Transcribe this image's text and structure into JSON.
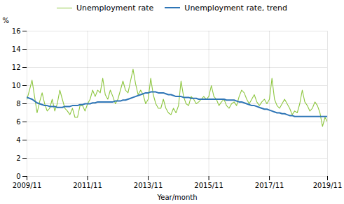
{
  "chart_data": {
    "type": "line",
    "xlabel": "Year/month",
    "ylabel": "%",
    "categories": [
      "2009/11",
      null,
      null,
      null,
      null,
      null,
      null,
      null,
      null,
      null,
      null,
      null,
      null,
      null,
      null,
      null,
      null,
      null,
      null,
      null,
      null,
      null,
      null,
      null,
      "2011/11",
      null,
      null,
      null,
      null,
      null,
      null,
      null,
      null,
      null,
      null,
      null,
      null,
      null,
      null,
      null,
      null,
      null,
      null,
      null,
      null,
      null,
      null,
      null,
      "2013/11",
      null,
      null,
      null,
      null,
      null,
      null,
      null,
      null,
      null,
      null,
      null,
      null,
      null,
      null,
      null,
      null,
      null,
      null,
      null,
      null,
      null,
      null,
      null,
      "2015/11",
      null,
      null,
      null,
      null,
      null,
      null,
      null,
      null,
      null,
      null,
      null,
      null,
      null,
      null,
      null,
      null,
      null,
      null,
      null,
      null,
      null,
      null,
      null,
      "2017/11",
      null,
      null,
      null,
      null,
      null,
      null,
      null,
      null,
      null,
      null,
      null,
      null,
      null,
      null,
      null,
      null,
      null,
      null,
      null,
      null,
      null,
      null,
      "2019/11"
    ],
    "series": [
      {
        "name": "Unemployment rate",
        "color": "#8dc63f",
        "values": [
          8.5,
          9.5,
          10.6,
          8.8,
          7.0,
          8.2,
          9.2,
          8.0,
          7.2,
          7.5,
          8.5,
          7.2,
          8.0,
          9.5,
          8.5,
          7.5,
          7.2,
          6.8,
          7.5,
          6.5,
          6.5,
          7.8,
          7.8,
          7.2,
          8.0,
          8.5,
          9.5,
          8.8,
          9.5,
          9.2,
          10.8,
          9.0,
          8.5,
          9.5,
          8.8,
          8.0,
          8.5,
          9.5,
          10.5,
          9.5,
          9.2,
          10.5,
          11.8,
          10.2,
          9.0,
          9.5,
          9.0,
          8.0,
          8.5,
          10.8,
          9.0,
          8.0,
          7.5,
          7.5,
          8.5,
          7.5,
          7.0,
          6.8,
          7.5,
          7.0,
          7.8,
          10.5,
          8.8,
          8.0,
          7.8,
          8.8,
          8.5,
          8.0,
          8.2,
          8.5,
          8.8,
          8.5,
          8.8,
          10.0,
          8.8,
          8.5,
          7.8,
          8.2,
          8.5,
          7.8,
          7.5,
          8.0,
          8.2,
          7.8,
          8.8,
          9.5,
          9.2,
          8.5,
          8.0,
          8.5,
          9.0,
          8.2,
          7.8,
          8.2,
          8.5,
          8.0,
          8.5,
          10.8,
          8.5,
          7.8,
          7.5,
          8.0,
          8.5,
          8.0,
          7.5,
          6.8,
          7.2,
          7.0,
          8.0,
          9.5,
          8.2,
          7.8,
          7.2,
          7.5,
          8.2,
          7.8,
          7.0,
          5.5,
          6.5,
          6.0
        ]
      },
      {
        "name": "Unemployment rate, trend",
        "color": "#2e75b6",
        "values": [
          8.7,
          8.6,
          8.5,
          8.3,
          8.1,
          8.0,
          7.9,
          7.8,
          7.8,
          7.7,
          7.7,
          7.7,
          7.6,
          7.6,
          7.6,
          7.7,
          7.7,
          7.7,
          7.8,
          7.8,
          7.8,
          7.9,
          7.9,
          8.0,
          8.0,
          8.0,
          8.1,
          8.1,
          8.2,
          8.2,
          8.2,
          8.2,
          8.2,
          8.2,
          8.2,
          8.3,
          8.3,
          8.3,
          8.4,
          8.4,
          8.5,
          8.6,
          8.7,
          8.8,
          8.9,
          9.0,
          9.1,
          9.2,
          9.2,
          9.3,
          9.3,
          9.3,
          9.2,
          9.2,
          9.2,
          9.1,
          9.0,
          9.0,
          8.9,
          8.8,
          8.8,
          8.8,
          8.7,
          8.7,
          8.7,
          8.6,
          8.6,
          8.6,
          8.5,
          8.5,
          8.5,
          8.5,
          8.5,
          8.5,
          8.5,
          8.5,
          8.5,
          8.5,
          8.5,
          8.4,
          8.4,
          8.4,
          8.4,
          8.3,
          8.2,
          8.2,
          8.1,
          8.0,
          7.9,
          7.8,
          7.8,
          7.7,
          7.6,
          7.5,
          7.4,
          7.4,
          7.3,
          7.2,
          7.1,
          7.0,
          7.0,
          6.9,
          6.9,
          6.8,
          6.7,
          6.7,
          6.6,
          6.6,
          6.6,
          6.6,
          6.6,
          6.6,
          6.6,
          6.6,
          6.6,
          6.6,
          6.6,
          6.6,
          6.6,
          6.6
        ]
      }
    ],
    "ylim": [
      0,
      16
    ],
    "yticks": [
      0,
      2,
      4,
      6,
      8,
      10,
      12,
      14,
      16
    ],
    "grid": true,
    "legend": "top"
  }
}
